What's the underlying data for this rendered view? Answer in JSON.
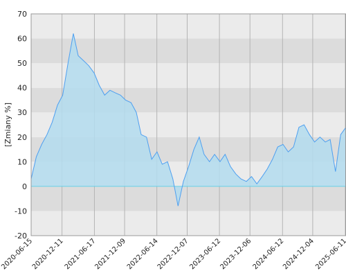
{
  "chart_data": {
    "type": "area",
    "y_label": "[Zmiany %]",
    "x": [
      "2020-06-15",
      "2020-07-15",
      "2020-08-15",
      "2020-09-15",
      "2020-10-15",
      "2020-11-15",
      "2020-12-15",
      "2021-01-15",
      "2021-02-15",
      "2021-03-15",
      "2021-04-15",
      "2021-05-15",
      "2021-06-15",
      "2021-07-15",
      "2021-08-15",
      "2021-09-15",
      "2021-10-15",
      "2021-11-15",
      "2021-12-15",
      "2022-01-15",
      "2022-02-15",
      "2022-03-15",
      "2022-04-15",
      "2022-05-15",
      "2022-06-15",
      "2022-07-15",
      "2022-08-15",
      "2022-09-15",
      "2022-10-15",
      "2022-11-15",
      "2022-12-15",
      "2023-01-15",
      "2023-02-15",
      "2023-03-15",
      "2023-04-15",
      "2023-05-15",
      "2023-06-15",
      "2023-07-15",
      "2023-08-15",
      "2023-09-15",
      "2023-10-15",
      "2023-11-15",
      "2023-12-15",
      "2024-01-15",
      "2024-02-15",
      "2024-03-15",
      "2024-04-15",
      "2024-05-15",
      "2024-06-15",
      "2024-07-15",
      "2024-08-15",
      "2024-09-15",
      "2024-10-15",
      "2024-11-15",
      "2024-12-15",
      "2025-01-15",
      "2025-02-15",
      "2025-03-15",
      "2025-04-15",
      "2025-05-15",
      "2025-06-15"
    ],
    "values": [
      3,
      12,
      17,
      21,
      26,
      33,
      37,
      50,
      62,
      53,
      51,
      49,
      46,
      41,
      37,
      39,
      38,
      37,
      35,
      34,
      30,
      21,
      20,
      11,
      14,
      9,
      10,
      3,
      -8,
      2,
      8,
      15,
      20,
      13,
      10,
      13,
      10,
      13,
      8,
      5,
      3,
      2,
      4,
      1,
      4,
      7,
      11,
      16,
      17,
      14,
      16,
      24,
      25,
      21,
      18,
      20,
      18,
      19,
      6,
      21,
      24
    ],
    "line_color": "#4d9ff0",
    "fill_color": "#b3dcee",
    "zero_color": "#66d0e8",
    "band_colors": [
      "#ebebeb",
      "#dcdcdc"
    ],
    "xlim": [
      "2020-06-15",
      "2025-06-15"
    ],
    "xticks": [
      "2020-06-15",
      "2020-12-11",
      "2021-06-17",
      "2021-12-09",
      "2022-06-14",
      "2022-12-07",
      "2023-06-12",
      "2023-12-06",
      "2024-06-12",
      "2024-12-04",
      "2025-06-11"
    ],
    "ylim": [
      -20,
      70
    ],
    "yticks": [
      -20,
      -10,
      0,
      10,
      20,
      30,
      40,
      50,
      60,
      70
    ],
    "grid": true
  }
}
